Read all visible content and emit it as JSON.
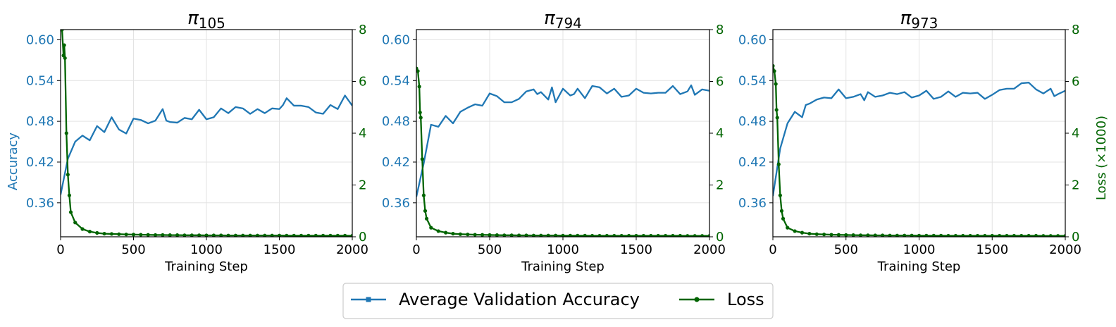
{
  "colors": {
    "accuracy": "#1f77b4",
    "loss": "#006400",
    "grid": "#e3e3e3",
    "axis": "#000000"
  },
  "legend": {
    "placement": "bottom-center",
    "accuracy_label": "Average Validation Accuracy",
    "loss_label": "Loss"
  },
  "chart_data": [
    {
      "type": "line",
      "title": "π",
      "title_sub": "105",
      "xlabel": "Training Step",
      "ylabel_left": "Accuracy",
      "ylabel_right": "",
      "xlim": [
        0,
        2000
      ],
      "ylim_left": [
        0.31,
        0.615
      ],
      "ylim_right": [
        0,
        8
      ],
      "x_ticks": [
        "0",
        "500",
        "1000",
        "1500",
        "2000"
      ],
      "y_ticks_left": [
        "0.36",
        "0.42",
        "0.48",
        "0.54",
        "0.60"
      ],
      "y_ticks_right": [
        "0",
        "2",
        "4",
        "6",
        "8"
      ],
      "grid": true,
      "series": [
        {
          "name": "Average Validation Accuracy",
          "axis": "left",
          "x": [
            0,
            50,
            100,
            150,
            200,
            250,
            300,
            350,
            400,
            450,
            500,
            550,
            600,
            650,
            700,
            725,
            750,
            800,
            850,
            900,
            950,
            1000,
            1050,
            1100,
            1150,
            1200,
            1250,
            1300,
            1350,
            1400,
            1450,
            1500,
            1525,
            1550,
            1600,
            1650,
            1700,
            1750,
            1800,
            1850,
            1900,
            1950,
            2000
          ],
          "values": [
            0.372,
            0.425,
            0.45,
            0.459,
            0.452,
            0.473,
            0.464,
            0.486,
            0.468,
            0.462,
            0.484,
            0.482,
            0.477,
            0.481,
            0.498,
            0.481,
            0.479,
            0.478,
            0.485,
            0.483,
            0.497,
            0.483,
            0.486,
            0.499,
            0.492,
            0.501,
            0.499,
            0.491,
            0.498,
            0.492,
            0.499,
            0.498,
            0.504,
            0.514,
            0.503,
            0.503,
            0.501,
            0.493,
            0.491,
            0.504,
            0.498,
            0.518,
            0.503
          ]
        },
        {
          "name": "Loss",
          "axis": "right",
          "x": [
            0,
            10,
            20,
            25,
            30,
            40,
            50,
            60,
            70,
            100,
            150,
            200,
            250,
            300,
            350,
            400,
            450,
            500,
            550,
            600,
            650,
            700,
            750,
            800,
            850,
            900,
            950,
            1000,
            1050,
            1100,
            1150,
            1200,
            1250,
            1300,
            1350,
            1400,
            1450,
            1500,
            1550,
            1600,
            1650,
            1700,
            1750,
            1800,
            1850,
            1900,
            1950,
            2000
          ],
          "values": [
            8.0,
            8.0,
            7.0,
            7.4,
            6.9,
            4.0,
            2.4,
            1.6,
            0.95,
            0.55,
            0.3,
            0.2,
            0.15,
            0.12,
            0.11,
            0.1,
            0.09,
            0.085,
            0.08,
            0.075,
            0.07,
            0.07,
            0.065,
            0.065,
            0.06,
            0.06,
            0.06,
            0.055,
            0.055,
            0.055,
            0.05,
            0.05,
            0.05,
            0.05,
            0.05,
            0.05,
            0.05,
            0.05,
            0.045,
            0.045,
            0.045,
            0.045,
            0.045,
            0.045,
            0.045,
            0.045,
            0.045,
            0.04
          ]
        }
      ]
    },
    {
      "type": "line",
      "title": "π",
      "title_sub": "794",
      "xlabel": "Training Step",
      "ylabel_left": "",
      "ylabel_right": "",
      "xlim": [
        0,
        2000
      ],
      "ylim_left": [
        0.31,
        0.615
      ],
      "ylim_right": [
        0,
        8
      ],
      "x_ticks": [
        "0",
        "500",
        "1000",
        "1500",
        "2000"
      ],
      "y_ticks_left": [
        "0.36",
        "0.42",
        "0.48",
        "0.54",
        "0.60"
      ],
      "y_ticks_right": [
        "0",
        "2",
        "4",
        "6",
        "8"
      ],
      "grid": true,
      "series": [
        {
          "name": "Average Validation Accuracy",
          "axis": "left",
          "x": [
            0,
            50,
            100,
            150,
            200,
            250,
            300,
            350,
            400,
            450,
            500,
            550,
            600,
            650,
            700,
            750,
            800,
            825,
            850,
            900,
            925,
            950,
            1000,
            1050,
            1075,
            1100,
            1150,
            1175,
            1200,
            1250,
            1300,
            1350,
            1400,
            1450,
            1500,
            1550,
            1600,
            1650,
            1700,
            1750,
            1800,
            1850,
            1875,
            1900,
            1950,
            2000
          ],
          "values": [
            0.369,
            0.418,
            0.475,
            0.472,
            0.488,
            0.477,
            0.494,
            0.5,
            0.505,
            0.503,
            0.521,
            0.517,
            0.508,
            0.508,
            0.513,
            0.524,
            0.527,
            0.52,
            0.523,
            0.512,
            0.53,
            0.508,
            0.528,
            0.518,
            0.52,
            0.528,
            0.514,
            0.523,
            0.532,
            0.53,
            0.521,
            0.528,
            0.516,
            0.518,
            0.528,
            0.522,
            0.521,
            0.522,
            0.522,
            0.532,
            0.52,
            0.524,
            0.533,
            0.519,
            0.527,
            0.525
          ]
        },
        {
          "name": "Loss",
          "axis": "right",
          "x": [
            0,
            10,
            20,
            25,
            30,
            40,
            50,
            60,
            70,
            100,
            150,
            200,
            250,
            300,
            350,
            400,
            450,
            500,
            550,
            600,
            650,
            700,
            750,
            800,
            850,
            900,
            950,
            1000,
            1050,
            1100,
            1150,
            1200,
            1250,
            1300,
            1350,
            1400,
            1450,
            1500,
            1550,
            1600,
            1650,
            1700,
            1750,
            1800,
            1850,
            1900,
            1950,
            2000
          ],
          "values": [
            6.5,
            6.4,
            5.8,
            4.8,
            4.6,
            3.0,
            1.6,
            1.0,
            0.7,
            0.35,
            0.22,
            0.16,
            0.12,
            0.1,
            0.09,
            0.08,
            0.075,
            0.07,
            0.065,
            0.06,
            0.06,
            0.055,
            0.055,
            0.05,
            0.05,
            0.05,
            0.05,
            0.045,
            0.045,
            0.045,
            0.045,
            0.04,
            0.04,
            0.04,
            0.04,
            0.04,
            0.04,
            0.04,
            0.04,
            0.04,
            0.04,
            0.04,
            0.04,
            0.04,
            0.035,
            0.035,
            0.035,
            0.035
          ]
        }
      ]
    },
    {
      "type": "line",
      "title": "π",
      "title_sub": "973",
      "xlabel": "Training Step",
      "ylabel_left": "",
      "ylabel_right": "Loss (×1000)",
      "xlim": [
        0,
        2000
      ],
      "ylim_left": [
        0.31,
        0.615
      ],
      "ylim_right": [
        0,
        8
      ],
      "x_ticks": [
        "0",
        "500",
        "1000",
        "1500",
        "2000"
      ],
      "y_ticks_left": [
        "0.36",
        "0.42",
        "0.48",
        "0.54",
        "0.60"
      ],
      "y_ticks_right": [
        "0",
        "2",
        "4",
        "6",
        "8"
      ],
      "grid": true,
      "series": [
        {
          "name": "Average Validation Accuracy",
          "axis": "left",
          "x": [
            0,
            50,
            100,
            150,
            200,
            225,
            250,
            300,
            350,
            400,
            450,
            500,
            550,
            600,
            625,
            650,
            700,
            750,
            800,
            850,
            900,
            950,
            1000,
            1050,
            1100,
            1150,
            1200,
            1250,
            1300,
            1350,
            1400,
            1450,
            1500,
            1550,
            1600,
            1650,
            1700,
            1750,
            1800,
            1850,
            1900,
            1925,
            1950,
            2000
          ],
          "values": [
            0.37,
            0.44,
            0.477,
            0.494,
            0.486,
            0.504,
            0.506,
            0.512,
            0.515,
            0.514,
            0.527,
            0.514,
            0.516,
            0.52,
            0.511,
            0.523,
            0.516,
            0.518,
            0.522,
            0.52,
            0.523,
            0.515,
            0.518,
            0.525,
            0.513,
            0.516,
            0.524,
            0.516,
            0.522,
            0.521,
            0.522,
            0.513,
            0.519,
            0.526,
            0.528,
            0.528,
            0.536,
            0.537,
            0.527,
            0.521,
            0.528,
            0.517,
            0.52,
            0.525
          ]
        },
        {
          "name": "Loss",
          "axis": "right",
          "x": [
            0,
            10,
            20,
            25,
            30,
            40,
            50,
            60,
            70,
            100,
            150,
            200,
            250,
            300,
            350,
            400,
            450,
            500,
            550,
            600,
            650,
            700,
            750,
            800,
            850,
            900,
            950,
            1000,
            1050,
            1100,
            1150,
            1200,
            1250,
            1300,
            1350,
            1400,
            1450,
            1500,
            1550,
            1600,
            1650,
            1700,
            1750,
            1800,
            1850,
            1900,
            1950,
            2000
          ],
          "values": [
            6.6,
            6.4,
            5.9,
            4.9,
            4.6,
            2.8,
            1.6,
            1.0,
            0.7,
            0.35,
            0.22,
            0.16,
            0.12,
            0.1,
            0.09,
            0.08,
            0.075,
            0.07,
            0.065,
            0.06,
            0.06,
            0.055,
            0.055,
            0.05,
            0.05,
            0.05,
            0.05,
            0.045,
            0.045,
            0.045,
            0.045,
            0.04,
            0.04,
            0.04,
            0.04,
            0.04,
            0.04,
            0.04,
            0.04,
            0.04,
            0.04,
            0.04,
            0.04,
            0.04,
            0.035,
            0.035,
            0.035,
            0.035
          ]
        }
      ]
    }
  ]
}
